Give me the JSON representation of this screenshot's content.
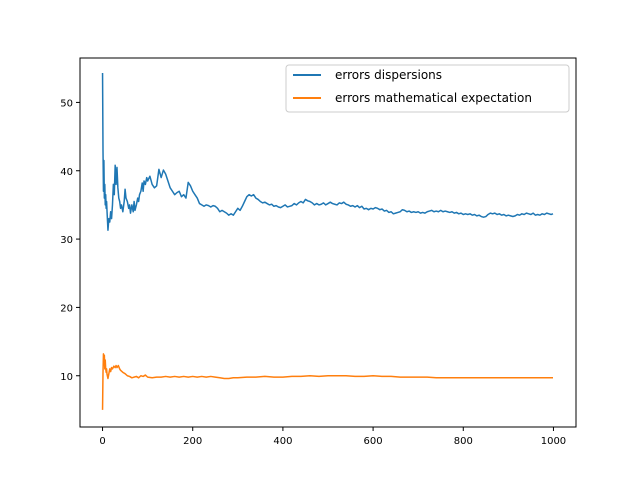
{
  "chart_data": {
    "type": "line",
    "title": "",
    "xlabel": "",
    "ylabel": "",
    "xlim": [
      -50,
      1050
    ],
    "ylim": [
      2.5,
      56.5
    ],
    "xticks": [
      0,
      200,
      400,
      600,
      800,
      1000
    ],
    "yticks": [
      10,
      20,
      30,
      40,
      50
    ],
    "grid": false,
    "legend_placement": "top-right",
    "series": [
      {
        "name": "errors dispersions",
        "color": "#1f77b4",
        "points": [
          [
            0,
            54.3
          ],
          [
            1,
            43.0
          ],
          [
            2,
            37.0
          ],
          [
            3,
            41.5
          ],
          [
            4,
            36.0
          ],
          [
            5,
            38.0
          ],
          [
            6,
            35.0
          ],
          [
            7,
            36.5
          ],
          [
            8,
            34.5
          ],
          [
            9,
            35.5
          ],
          [
            10,
            34.0
          ],
          [
            12,
            31.3
          ],
          [
            14,
            33.0
          ],
          [
            16,
            32.5
          ],
          [
            18,
            34.0
          ],
          [
            20,
            33.0
          ],
          [
            22,
            35.0
          ],
          [
            24,
            38.0
          ],
          [
            26,
            36.5
          ],
          [
            28,
            40.8
          ],
          [
            30,
            38.0
          ],
          [
            32,
            40.5
          ],
          [
            34,
            37.5
          ],
          [
            36,
            36.0
          ],
          [
            38,
            35.5
          ],
          [
            40,
            34.5
          ],
          [
            42,
            35.0
          ],
          [
            45,
            34.0
          ],
          [
            48,
            35.5
          ],
          [
            50,
            37.3
          ],
          [
            52,
            36.0
          ],
          [
            55,
            35.5
          ],
          [
            58,
            34.5
          ],
          [
            60,
            35.0
          ],
          [
            62,
            33.8
          ],
          [
            65,
            35.0
          ],
          [
            68,
            34.0
          ],
          [
            70,
            35.5
          ],
          [
            72,
            34.2
          ],
          [
            75,
            35.0
          ],
          [
            78,
            36.0
          ],
          [
            80,
            35.5
          ],
          [
            82,
            36.5
          ],
          [
            85,
            37.0
          ],
          [
            88,
            38.2
          ],
          [
            90,
            37.0
          ],
          [
            92,
            38.5
          ],
          [
            95,
            38.0
          ],
          [
            98,
            39.0
          ],
          [
            100,
            38.5
          ],
          [
            105,
            39.2
          ],
          [
            110,
            38.0
          ],
          [
            115,
            37.5
          ],
          [
            120,
            37.8
          ],
          [
            125,
            40.2
          ],
          [
            130,
            39.0
          ],
          [
            135,
            40.1
          ],
          [
            140,
            39.5
          ],
          [
            145,
            38.5
          ],
          [
            150,
            37.5
          ],
          [
            155,
            37.0
          ],
          [
            160,
            36.5
          ],
          [
            165,
            36.8
          ],
          [
            170,
            37.0
          ],
          [
            175,
            36.2
          ],
          [
            180,
            36.5
          ],
          [
            185,
            36.0
          ],
          [
            190,
            38.3
          ],
          [
            195,
            37.8
          ],
          [
            200,
            37.0
          ],
          [
            205,
            36.5
          ],
          [
            210,
            36.0
          ],
          [
            215,
            35.2
          ],
          [
            220,
            35.0
          ],
          [
            225,
            34.8
          ],
          [
            230,
            35.0
          ],
          [
            235,
            34.9
          ],
          [
            240,
            34.7
          ],
          [
            245,
            34.9
          ],
          [
            250,
            34.8
          ],
          [
            255,
            34.5
          ],
          [
            260,
            34.0
          ],
          [
            265,
            34.2
          ],
          [
            270,
            34.0
          ],
          [
            275,
            33.8
          ],
          [
            280,
            33.5
          ],
          [
            285,
            33.7
          ],
          [
            290,
            33.5
          ],
          [
            295,
            34.0
          ],
          [
            300,
            34.5
          ],
          [
            305,
            34.2
          ],
          [
            310,
            34.8
          ],
          [
            315,
            35.5
          ],
          [
            320,
            36.2
          ],
          [
            325,
            36.5
          ],
          [
            330,
            36.3
          ],
          [
            335,
            36.5
          ],
          [
            340,
            36.0
          ],
          [
            345,
            35.8
          ],
          [
            350,
            35.5
          ],
          [
            355,
            35.3
          ],
          [
            360,
            35.4
          ],
          [
            365,
            35.2
          ],
          [
            370,
            35.0
          ],
          [
            375,
            35.1
          ],
          [
            380,
            34.8
          ],
          [
            385,
            34.9
          ],
          [
            390,
            34.7
          ],
          [
            395,
            34.6
          ],
          [
            400,
            34.8
          ],
          [
            405,
            35.0
          ],
          [
            410,
            34.7
          ],
          [
            415,
            34.8
          ],
          [
            420,
            34.9
          ],
          [
            425,
            35.2
          ],
          [
            430,
            35.0
          ],
          [
            435,
            35.3
          ],
          [
            440,
            35.5
          ],
          [
            445,
            35.3
          ],
          [
            450,
            35.8
          ],
          [
            455,
            35.6
          ],
          [
            460,
            35.5
          ],
          [
            465,
            35.3
          ],
          [
            470,
            35.0
          ],
          [
            475,
            35.2
          ],
          [
            480,
            35.0
          ],
          [
            485,
            35.1
          ],
          [
            490,
            35.3
          ],
          [
            495,
            35.0
          ],
          [
            500,
            35.2
          ],
          [
            505,
            35.4
          ],
          [
            510,
            35.2
          ],
          [
            515,
            35.1
          ],
          [
            520,
            35.0
          ],
          [
            525,
            35.3
          ],
          [
            530,
            35.2
          ],
          [
            535,
            35.4
          ],
          [
            540,
            35.1
          ],
          [
            545,
            35.0
          ],
          [
            550,
            34.8
          ],
          [
            555,
            34.9
          ],
          [
            560,
            34.7
          ],
          [
            565,
            34.9
          ],
          [
            570,
            34.6
          ],
          [
            575,
            34.8
          ],
          [
            580,
            34.4
          ],
          [
            585,
            34.5
          ],
          [
            590,
            34.3
          ],
          [
            595,
            34.5
          ],
          [
            600,
            34.4
          ],
          [
            605,
            34.6
          ],
          [
            610,
            34.5
          ],
          [
            615,
            34.3
          ],
          [
            620,
            34.4
          ],
          [
            625,
            34.1
          ],
          [
            630,
            34.2
          ],
          [
            635,
            33.9
          ],
          [
            640,
            34.0
          ],
          [
            645,
            33.7
          ],
          [
            650,
            33.8
          ],
          [
            655,
            33.9
          ],
          [
            660,
            34.0
          ],
          [
            665,
            34.3
          ],
          [
            670,
            34.2
          ],
          [
            675,
            34.0
          ],
          [
            680,
            34.1
          ],
          [
            685,
            33.9
          ],
          [
            690,
            34.0
          ],
          [
            695,
            33.9
          ],
          [
            700,
            34.0
          ],
          [
            705,
            33.8
          ],
          [
            710,
            33.9
          ],
          [
            715,
            33.8
          ],
          [
            720,
            34.0
          ],
          [
            725,
            34.1
          ],
          [
            730,
            34.2
          ],
          [
            735,
            34.0
          ],
          [
            740,
            34.1
          ],
          [
            745,
            34.0
          ],
          [
            750,
            34.2
          ],
          [
            755,
            34.0
          ],
          [
            760,
            34.1
          ],
          [
            765,
            34.0
          ],
          [
            770,
            33.9
          ],
          [
            775,
            34.0
          ],
          [
            780,
            33.8
          ],
          [
            785,
            33.9
          ],
          [
            790,
            33.7
          ],
          [
            795,
            33.8
          ],
          [
            800,
            33.6
          ],
          [
            805,
            33.7
          ],
          [
            810,
            33.6
          ],
          [
            815,
            33.7
          ],
          [
            820,
            33.5
          ],
          [
            825,
            33.6
          ],
          [
            830,
            33.4
          ],
          [
            835,
            33.5
          ],
          [
            840,
            33.3
          ],
          [
            845,
            33.2
          ],
          [
            850,
            33.3
          ],
          [
            855,
            33.6
          ],
          [
            860,
            33.8
          ],
          [
            865,
            33.7
          ],
          [
            870,
            33.8
          ],
          [
            875,
            33.6
          ],
          [
            880,
            33.7
          ],
          [
            885,
            33.5
          ],
          [
            890,
            33.6
          ],
          [
            895,
            33.4
          ],
          [
            900,
            33.5
          ],
          [
            905,
            33.4
          ],
          [
            910,
            33.3
          ],
          [
            915,
            33.4
          ],
          [
            920,
            33.6
          ],
          [
            925,
            33.5
          ],
          [
            930,
            33.7
          ],
          [
            935,
            33.6
          ],
          [
            940,
            33.8
          ],
          [
            945,
            33.7
          ],
          [
            950,
            33.6
          ],
          [
            955,
            33.8
          ],
          [
            960,
            33.5
          ],
          [
            965,
            33.6
          ],
          [
            970,
            33.5
          ],
          [
            975,
            33.7
          ],
          [
            980,
            33.6
          ],
          [
            985,
            33.8
          ],
          [
            990,
            33.7
          ],
          [
            995,
            33.6
          ],
          [
            999,
            33.7
          ]
        ]
      },
      {
        "name": "errors mathematical expectation",
        "color": "#ff7f0e",
        "points": [
          [
            0,
            5.0
          ],
          [
            1,
            10.5
          ],
          [
            2,
            13.2
          ],
          [
            3,
            12.0
          ],
          [
            4,
            13.0
          ],
          [
            5,
            11.0
          ],
          [
            6,
            12.3
          ],
          [
            7,
            11.0
          ],
          [
            8,
            10.5
          ],
          [
            9,
            11.0
          ],
          [
            10,
            10.2
          ],
          [
            12,
            9.6
          ],
          [
            14,
            10.3
          ],
          [
            16,
            11.0
          ],
          [
            18,
            10.6
          ],
          [
            20,
            11.2
          ],
          [
            22,
            11.0
          ],
          [
            25,
            11.4
          ],
          [
            28,
            11.2
          ],
          [
            30,
            11.5
          ],
          [
            32,
            11.2
          ],
          [
            35,
            11.5
          ],
          [
            38,
            11.0
          ],
          [
            40,
            10.8
          ],
          [
            45,
            10.5
          ],
          [
            50,
            10.3
          ],
          [
            55,
            10.0
          ],
          [
            60,
            9.9
          ],
          [
            65,
            9.7
          ],
          [
            70,
            9.8
          ],
          [
            75,
            9.9
          ],
          [
            80,
            9.7
          ],
          [
            85,
            10.0
          ],
          [
            90,
            9.9
          ],
          [
            95,
            10.1
          ],
          [
            100,
            9.8
          ],
          [
            110,
            9.7
          ],
          [
            120,
            9.8
          ],
          [
            130,
            9.8
          ],
          [
            140,
            9.9
          ],
          [
            150,
            9.8
          ],
          [
            160,
            9.9
          ],
          [
            170,
            9.8
          ],
          [
            180,
            9.9
          ],
          [
            190,
            9.8
          ],
          [
            200,
            9.9
          ],
          [
            210,
            9.8
          ],
          [
            220,
            9.9
          ],
          [
            230,
            9.8
          ],
          [
            240,
            9.9
          ],
          [
            250,
            9.8
          ],
          [
            260,
            9.7
          ],
          [
            270,
            9.6
          ],
          [
            280,
            9.6
          ],
          [
            290,
            9.7
          ],
          [
            300,
            9.7
          ],
          [
            320,
            9.8
          ],
          [
            340,
            9.8
          ],
          [
            360,
            9.9
          ],
          [
            380,
            9.8
          ],
          [
            400,
            9.8
          ],
          [
            420,
            9.9
          ],
          [
            440,
            9.9
          ],
          [
            460,
            10.0
          ],
          [
            480,
            9.9
          ],
          [
            500,
            10.0
          ],
          [
            520,
            10.0
          ],
          [
            540,
            10.0
          ],
          [
            560,
            9.9
          ],
          [
            580,
            9.9
          ],
          [
            600,
            10.0
          ],
          [
            620,
            9.9
          ],
          [
            640,
            9.9
          ],
          [
            660,
            9.8
          ],
          [
            680,
            9.8
          ],
          [
            700,
            9.8
          ],
          [
            720,
            9.8
          ],
          [
            740,
            9.7
          ],
          [
            760,
            9.7
          ],
          [
            780,
            9.7
          ],
          [
            800,
            9.7
          ],
          [
            820,
            9.7
          ],
          [
            840,
            9.7
          ],
          [
            860,
            9.7
          ],
          [
            880,
            9.7
          ],
          [
            900,
            9.7
          ],
          [
            920,
            9.7
          ],
          [
            940,
            9.7
          ],
          [
            960,
            9.7
          ],
          [
            980,
            9.7
          ],
          [
            999,
            9.7
          ]
        ]
      }
    ]
  }
}
